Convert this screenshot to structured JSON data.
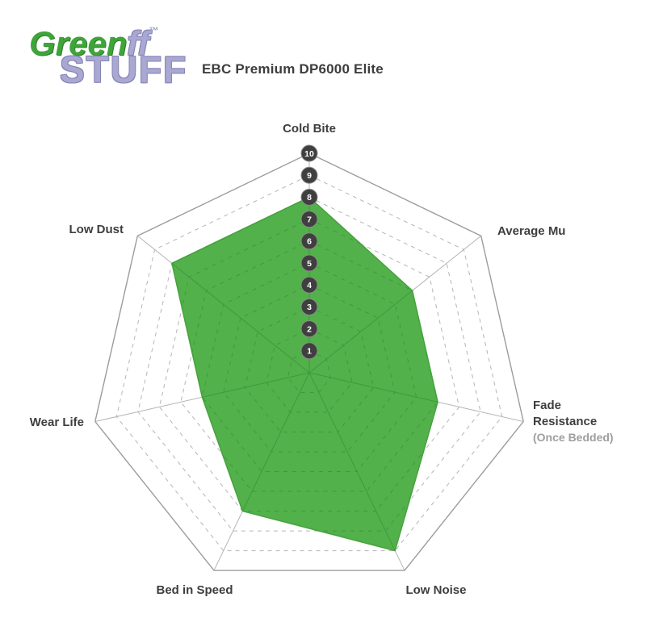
{
  "logo": {
    "word_green": "Green",
    "word_ff": "ff",
    "trademark": "™",
    "word_stuff": "STUFF",
    "green_color": "#3fa43a",
    "lavender_color": "#a8a8d2"
  },
  "header": {
    "title": "EBC Premium DP6000 Elite"
  },
  "chart_data": {
    "type": "radar",
    "title": "EBC Premium DP6000 Elite",
    "axes": [
      {
        "label": "Cold Bite",
        "value": 8
      },
      {
        "label": "Average Mu",
        "value": 6
      },
      {
        "label": "Fade Resistance",
        "sublabel": "(Once Bedded)",
        "label_lines": [
          "Fade",
          "Resistance"
        ],
        "value": 6
      },
      {
        "label": "Low Noise",
        "value": 9
      },
      {
        "label": "Bed in Speed",
        "value": 7
      },
      {
        "label": "Wear Life",
        "value": 5
      },
      {
        "label": "Low Dust",
        "value": 8
      }
    ],
    "series": [
      {
        "name": "EBC Premium DP6000 Elite",
        "values": [
          8,
          6,
          6,
          9,
          7,
          5,
          8
        ]
      }
    ],
    "scale": {
      "min": 0,
      "max": 10,
      "step": 1,
      "tick_labels": [
        "1",
        "2",
        "3",
        "4",
        "5",
        "6",
        "7",
        "8",
        "9",
        "10"
      ]
    },
    "layout": {
      "grid": "dashed concentric heptagons",
      "legend": "none",
      "tick_axis": "Cold Bite"
    },
    "colors": {
      "fill": "#52b14a",
      "fill_stroke": "#46a23e",
      "grid": "#b5b5b5",
      "grid_outer": "#9c9c9c",
      "grid_inside_fill": "#3f9a3b",
      "tick_marker_bg": "#3f3f3f",
      "tick_marker_ring": "#8b8b8b",
      "tick_marker_text": "#ffffff",
      "axis_label": "#3e3e3e",
      "axis_sublabel": "#9e9e9e"
    }
  }
}
